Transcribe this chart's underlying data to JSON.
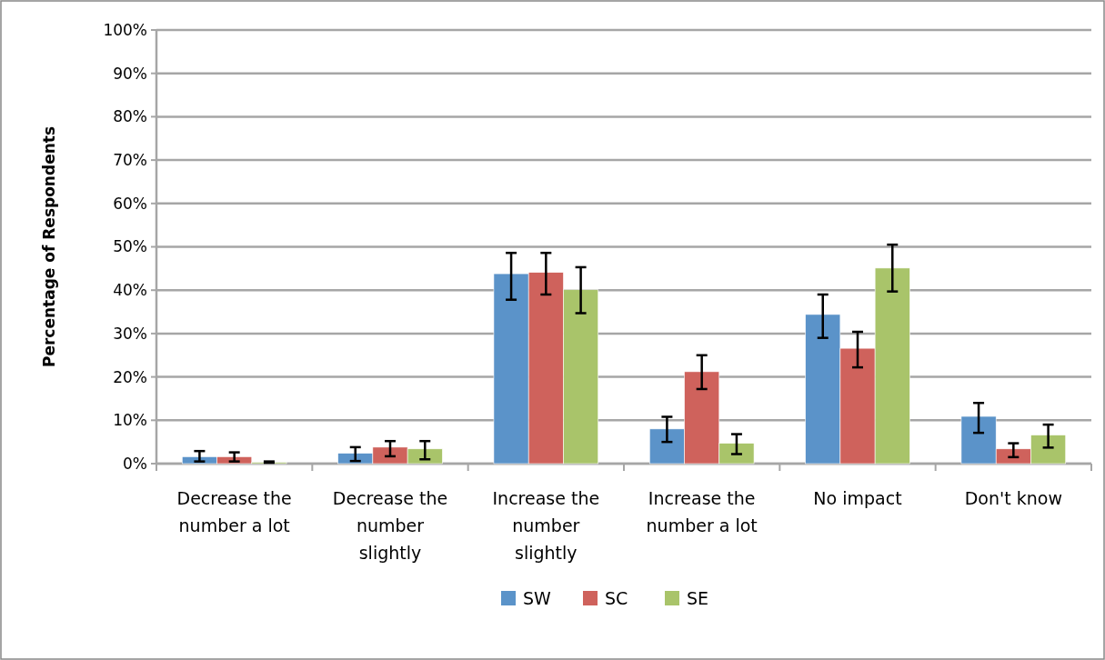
{
  "chart_data": {
    "type": "bar",
    "ylabel": "Percentage of Respondents",
    "categories": [
      "Decrease the number a lot",
      "Decrease the number slightly",
      "Increase the number slightly",
      "Increase the number a lot",
      "No impact",
      "Don't know"
    ],
    "series": [
      {
        "name": "SW",
        "color": "#5b93c9",
        "values": [
          1.6,
          2.4,
          43.8,
          8.0,
          34.4,
          10.9
        ],
        "errors": [
          [
            0.5,
            2.9
          ],
          [
            0.6,
            3.8
          ],
          [
            37.8,
            48.6
          ],
          [
            5.0,
            10.8
          ],
          [
            29.0,
            39.0
          ],
          [
            7.1,
            14.0
          ]
        ]
      },
      {
        "name": "SC",
        "color": "#cf625c",
        "values": [
          1.6,
          3.8,
          44.1,
          21.2,
          26.6,
          3.4
        ],
        "errors": [
          [
            0.5,
            2.6
          ],
          [
            1.7,
            5.2
          ],
          [
            39.0,
            48.6
          ],
          [
            17.2,
            25.0
          ],
          [
            22.2,
            30.4
          ],
          [
            1.5,
            4.7
          ]
        ]
      },
      {
        "name": "SE",
        "color": "#a9c46a",
        "values": [
          0.3,
          3.4,
          40.1,
          4.7,
          45.1,
          6.6
        ],
        "errors": [
          [
            0.2,
            0.5
          ],
          [
            1.0,
            5.2
          ],
          [
            34.7,
            45.3
          ],
          [
            2.2,
            6.8
          ],
          [
            39.7,
            50.5
          ],
          [
            3.7,
            9.0
          ]
        ]
      }
    ],
    "ylim": [
      0,
      100
    ],
    "yticks": [
      {
        "value": 0,
        "label": "0%"
      },
      {
        "value": 10,
        "label": "10%"
      },
      {
        "value": 20,
        "label": "20%"
      },
      {
        "value": 30,
        "label": "30%"
      },
      {
        "value": 40,
        "label": "40%"
      },
      {
        "value": 50,
        "label": "50%"
      },
      {
        "value": 60,
        "label": "60%"
      },
      {
        "value": 70,
        "label": "70%"
      },
      {
        "value": 80,
        "label": "80%"
      },
      {
        "value": 90,
        "label": "90%"
      },
      {
        "value": 100,
        "label": "100%"
      }
    ],
    "grid": "y",
    "legend": "bottom"
  }
}
